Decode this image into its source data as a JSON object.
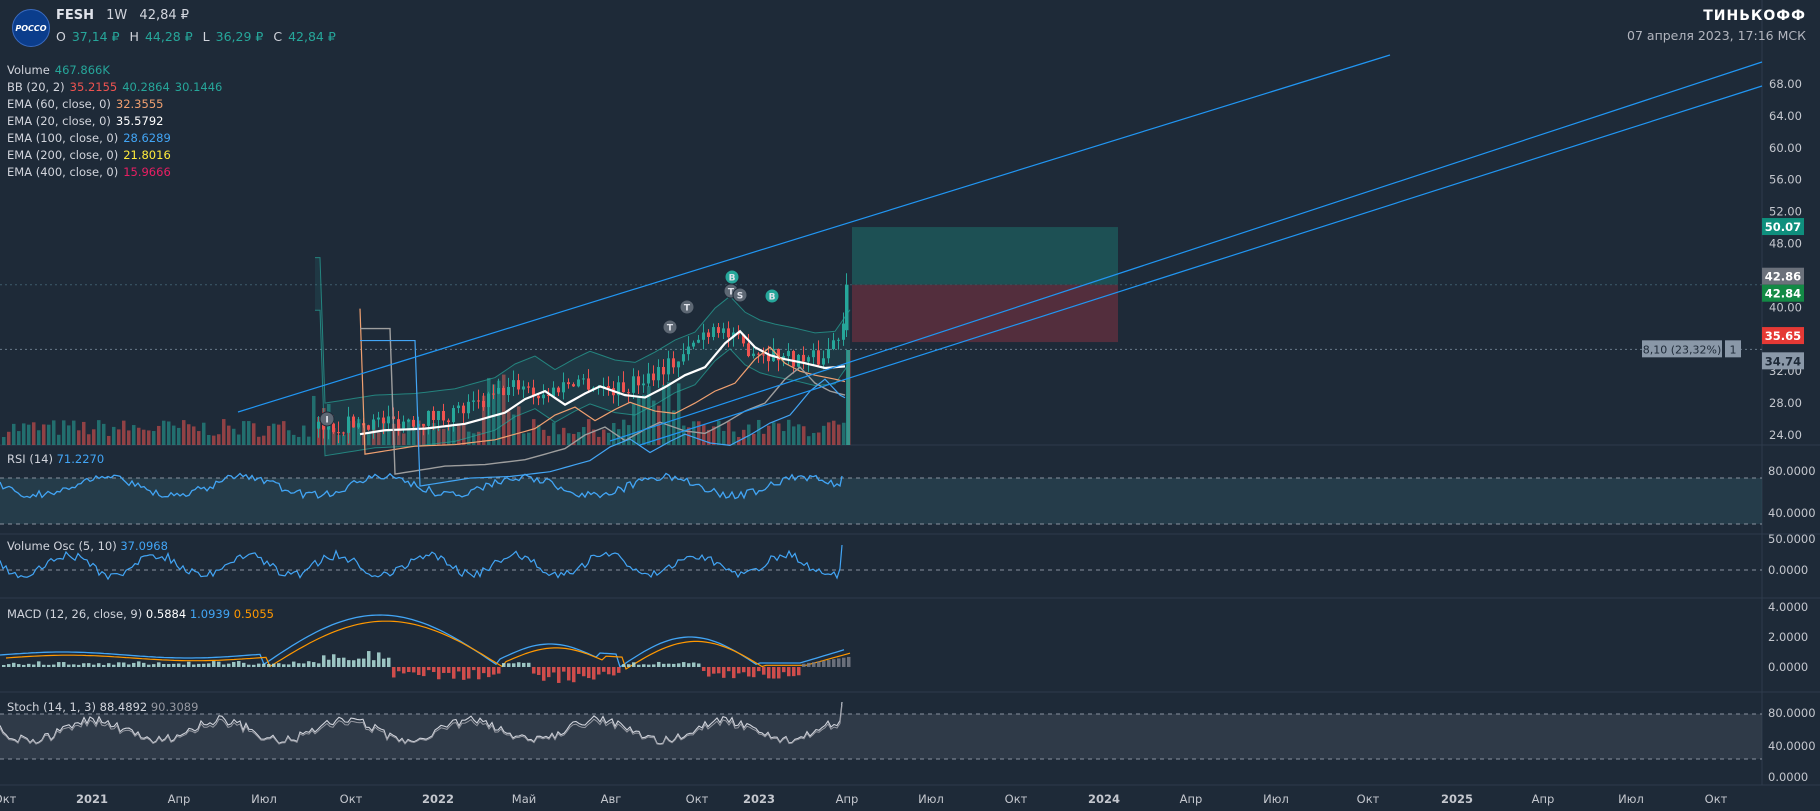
{
  "header": {
    "logo_text": "РОССО",
    "symbol": "FESH",
    "interval": "1W",
    "price": "42,84 ₽",
    "ohlc": {
      "o_label": "O",
      "o": "37,14 ₽",
      "h_label": "H",
      "h": "44,28 ₽",
      "l_label": "L",
      "l": "36,29 ₽",
      "c_label": "C",
      "c": "42,84 ₽"
    },
    "brand": "ТИНЬКОФФ",
    "datetime": "07 апреля 2023, 17:16 МСК"
  },
  "legend": {
    "volume": {
      "label": "Volume",
      "value": "467.866K",
      "color": "#26a69a"
    },
    "bb": {
      "label": "BB (20, 2)",
      "v1": "35.2155",
      "v2": "40.2864",
      "v3": "30.1446",
      "c1": "#ef5350",
      "c2": "#26a69a",
      "c3": "#26a69a"
    },
    "ema60": {
      "label": "EMA (60, close, 0)",
      "value": "32.3555",
      "color": "#f0a070"
    },
    "ema20": {
      "label": "EMA (20, close, 0)",
      "value": "35.5792",
      "color": "#ffffff"
    },
    "ema100": {
      "label": "EMA (100, close, 0)",
      "value": "28.6289",
      "color": "#42a5f5"
    },
    "ema200": {
      "label": "EMA (200, close, 0)",
      "value": "21.8016",
      "color": "#ffeb3b"
    },
    "ema400": {
      "label": "EMA (400, close, 0)",
      "value": "15.9666",
      "color": "#e91e63"
    }
  },
  "panes": {
    "rsi": {
      "label": "RSI (14)",
      "value": "71.2270",
      "color": "#42a5f5"
    },
    "vosc": {
      "label": "Volume Osc (5, 10)",
      "value": "37.0968",
      "color": "#42a5f5"
    },
    "macd": {
      "label": "MACD (12, 26, close, 9)",
      "v1": "0.5884",
      "v2": "1.0939",
      "v3": "0.5055",
      "c1": "#ffffff",
      "c2": "#42a5f5",
      "c3": "#ff9800"
    },
    "stoch": {
      "label": "Stoch (14, 1, 3)",
      "v1": "88.4892",
      "v2": "90.3089",
      "c1": "#d1d4dc",
      "c2": "#9598a1"
    }
  },
  "price_labels": {
    "target": "50.07",
    "current_gray": "42.86",
    "current": "42.84",
    "stop": "35.65",
    "entry": "34.74",
    "position_text": "8,10 (23,32%)",
    "position_qty": "1"
  },
  "colors": {
    "up": "#26a69a",
    "down": "#ef5350",
    "bg": "#1e2a38",
    "line_blue": "#2196f3"
  },
  "chart_data": {
    "type": "candlestick",
    "timeframe": "1W",
    "x_axis_labels": [
      "Окт",
      "2021",
      "Апр",
      "Июл",
      "Окт",
      "2022",
      "Май",
      "Авг",
      "Окт",
      "2023",
      "Апр",
      "Июл",
      "Окт",
      "2024",
      "Апр",
      "Июл",
      "Окт",
      "2025",
      "Апр",
      "Июл",
      "Окт"
    ],
    "y_ticks": [
      "68.00",
      "64.00",
      "60.00",
      "56.00",
      "52.00",
      "48.00",
      "40.00",
      "32.00",
      "28.00",
      "24.00"
    ],
    "ylim": [
      21.5,
      72
    ],
    "last_ohlc": {
      "open": 37.14,
      "high": 44.28,
      "low": 36.29,
      "close": 42.84
    },
    "position": {
      "entry": 34.74,
      "stop": 35.65,
      "target": 50.07
    },
    "bb_last": {
      "basis": 35.2155,
      "upper": 40.2864,
      "lower": 30.1446
    },
    "ema_last": {
      "ema20": 35.5792,
      "ema60": 32.3555,
      "ema100": 28.6289,
      "ema200": 21.8016,
      "ema400": 15.9666
    },
    "rsi": {
      "value": 71.227,
      "levels": [
        70,
        30
      ],
      "ticks": [
        "80.0000",
        "40.0000"
      ]
    },
    "volume_osc": {
      "value": 37.0968,
      "ticks": [
        "50.0000",
        "0.0000"
      ]
    },
    "macd": {
      "macd": 1.0939,
      "signal": 0.5055,
      "hist": 0.5884,
      "ticks": [
        "4.0000",
        "2.0000",
        "0.0000"
      ]
    },
    "stoch": {
      "k": 88.4892,
      "d": 90.3089,
      "ticks": [
        "80.0000",
        "40.0000",
        "0.0000"
      ]
    },
    "markers": [
      "T",
      "T",
      "B",
      "S",
      "B",
      "T",
      "I"
    ]
  }
}
